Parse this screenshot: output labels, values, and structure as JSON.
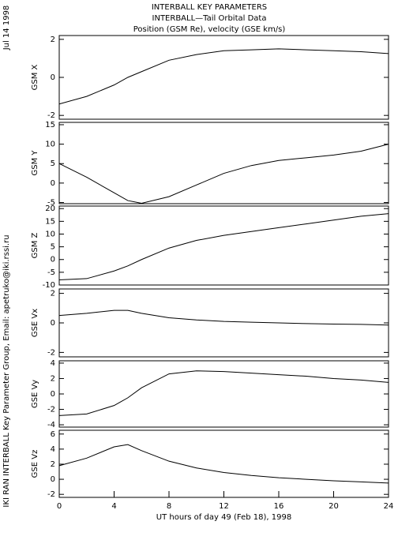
{
  "header": {
    "date": "Jul 14 1998",
    "titles": [
      "INTERBALL KEY PARAMETERS",
      "INTERBALL—Tail Orbital Data",
      "Position (GSM Re), velocity (GSE km/s)"
    ],
    "credit": "IKI RAN INTERBALL Key Parameter Group, Email: apetruko@iki.rssi.ru"
  },
  "chart_data": [
    {
      "type": "line",
      "ylabel": "GSM X",
      "x": [
        0,
        2,
        4,
        5,
        6,
        8,
        10,
        12,
        14,
        16,
        18,
        20,
        22,
        24
      ],
      "values": [
        -1.4,
        -1.0,
        -0.4,
        0,
        0.3,
        0.9,
        1.2,
        1.4,
        1.45,
        1.5,
        1.45,
        1.4,
        1.35,
        1.25
      ],
      "xlim": [
        0,
        24
      ],
      "ylim": [
        -2.2,
        2.2
      ],
      "yticks": [
        -2,
        0,
        2
      ]
    },
    {
      "type": "line",
      "ylabel": "GSM Y",
      "x": [
        0,
        2,
        4,
        5,
        6,
        8,
        10,
        12,
        14,
        16,
        18,
        20,
        22,
        24
      ],
      "values": [
        5,
        1.5,
        -2.5,
        -4.5,
        -5.2,
        -3.5,
        -0.5,
        2.5,
        4.5,
        5.8,
        6.5,
        7.2,
        8.2,
        10
      ],
      "xlim": [
        0,
        24
      ],
      "ylim": [
        -5.3,
        15.6
      ],
      "yticks": [
        -5,
        0,
        5,
        10,
        15
      ]
    },
    {
      "type": "line",
      "ylabel": "GSM Z",
      "x": [
        0,
        2,
        4,
        5,
        6,
        8,
        10,
        12,
        14,
        16,
        18,
        20,
        22,
        24
      ],
      "values": [
        -8,
        -7.5,
        -4.5,
        -2.5,
        0,
        4.5,
        7.5,
        9.5,
        11,
        12.5,
        14,
        15.5,
        17,
        18
      ],
      "xlim": [
        0,
        24
      ],
      "ylim": [
        -10,
        21
      ],
      "yticks": [
        -10,
        -5,
        0,
        5,
        10,
        15,
        20
      ]
    },
    {
      "type": "line",
      "ylabel": "GSE Vx",
      "x": [
        0,
        2,
        4,
        5,
        6,
        8,
        10,
        12,
        14,
        16,
        18,
        20,
        22,
        24
      ],
      "values": [
        0.5,
        0.65,
        0.85,
        0.85,
        0.65,
        0.35,
        0.2,
        0.1,
        0.05,
        0,
        -0.05,
        -0.08,
        -0.1,
        -0.15
      ],
      "xlim": [
        0,
        24
      ],
      "ylim": [
        -2.3,
        2.3
      ],
      "yticks": [
        -2,
        0,
        2
      ]
    },
    {
      "type": "line",
      "ylabel": "GSE Vy",
      "x": [
        0,
        2,
        4,
        5,
        6,
        8,
        10,
        12,
        14,
        16,
        18,
        20,
        22,
        24
      ],
      "values": [
        -2.8,
        -2.6,
        -1.5,
        -0.5,
        0.8,
        2.6,
        3.0,
        2.9,
        2.7,
        2.5,
        2.3,
        2.0,
        1.8,
        1.5
      ],
      "xlim": [
        0,
        24
      ],
      "ylim": [
        -4.3,
        4.3
      ],
      "yticks": [
        -4,
        -2,
        0,
        2,
        4
      ]
    },
    {
      "type": "line",
      "ylabel": "GSE Vz",
      "x": [
        0,
        2,
        4,
        5,
        6,
        8,
        10,
        12,
        14,
        16,
        18,
        20,
        22,
        24
      ],
      "values": [
        1.8,
        2.8,
        4.3,
        4.6,
        3.8,
        2.4,
        1.5,
        0.9,
        0.5,
        0.2,
        0,
        -0.2,
        -0.35,
        -0.5
      ],
      "xlim": [
        0,
        24
      ],
      "ylim": [
        -2.4,
        6.5
      ],
      "yticks": [
        -2,
        0,
        2,
        4,
        6
      ],
      "xticks": [
        0,
        4,
        8,
        12,
        16,
        20,
        24
      ],
      "xlabel": "UT hours of day  49 (Feb 18), 1998"
    }
  ]
}
